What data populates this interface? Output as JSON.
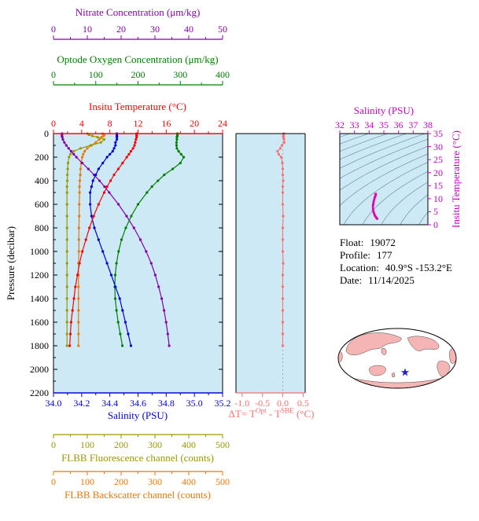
{
  "colors": {
    "nitrate": "#8800AA",
    "oxygen": "#008000",
    "temperature": "#FF0000",
    "salinity": "#0000DD",
    "fluorescence": "#999900",
    "backscatter": "#EE7700",
    "delta_t": "#FF6E6E",
    "ts_curve": "#E800B0",
    "ts_label": "#CC00CC",
    "plot_bg": "#CDE9F6",
    "contour": "#6B93A8",
    "land": "#F5B5B5",
    "star": "#2222CC"
  },
  "axes": {
    "nitrate": {
      "title": "Nitrate Concentration (μm/kg)",
      "ticks": [
        0,
        10,
        20,
        30,
        40,
        50
      ],
      "lim": [
        0,
        50
      ]
    },
    "oxygen": {
      "title": "Optode Oxygen Concentration (μm/kg)",
      "ticks": [
        0,
        100,
        200,
        300,
        400
      ],
      "lim": [
        0,
        400
      ]
    },
    "temperature": {
      "title": "Insitu Temperature (°C)",
      "ticks": [
        0,
        4,
        8,
        12,
        16,
        20,
        24
      ],
      "lim": [
        0,
        24
      ]
    },
    "pressure": {
      "title": "Pressure (decibar)",
      "ticks": [
        0,
        200,
        400,
        600,
        800,
        1000,
        1200,
        1400,
        1600,
        1800,
        2000,
        2200
      ],
      "lim": [
        0,
        2200
      ]
    },
    "salinity": {
      "title": "Salinity (PSU)",
      "ticks": [
        "34.0",
        "34.2",
        "34.4",
        "34.6",
        "34.8",
        "35.0",
        "35.2"
      ],
      "lim": [
        34.0,
        35.2
      ]
    },
    "fluorescence": {
      "title": "FLBB Fluorescence channel (counts)",
      "ticks": [
        0,
        100,
        200,
        300,
        400,
        500
      ],
      "lim": [
        0,
        500
      ]
    },
    "backscatter": {
      "title": "FLBB Backscatter channel (counts)",
      "ticks": [
        0,
        100,
        200,
        300,
        400,
        500
      ],
      "lim": [
        0,
        500
      ]
    },
    "delta_t": {
      "title_parts": {
        "p1": "ΔT= T",
        "sup1": "Opt",
        "p2": " - T",
        "sup2": "SBE",
        "p3": " (°C)"
      },
      "ticks": [
        "-1.0",
        "-0.5",
        "0.0",
        "0.5"
      ],
      "lim": [
        -1.15,
        0.55
      ]
    },
    "ts_salinity": {
      "title": "Salinity (PSU)",
      "ticks": [
        32,
        33,
        34,
        35,
        36,
        37,
        38
      ],
      "lim": [
        32,
        38
      ]
    },
    "ts_temperature": {
      "title": "Insitu Temperature (°C)",
      "ticks": [
        0,
        5,
        10,
        15,
        20,
        25,
        30,
        35
      ],
      "lim": [
        0,
        35
      ]
    }
  },
  "info": {
    "float_label": "Float:",
    "float_value": "19072",
    "profile_label": "Profile:",
    "profile_value": "177",
    "location_label": "Location:",
    "location_value": "40.9°S -153.2°E",
    "date_label": "Date:",
    "date_value": "11/14/2025"
  },
  "chart_data": [
    {
      "id": "profile",
      "type": "line",
      "ylabel": "Pressure (decibar)",
      "ylim": [
        0,
        2200
      ],
      "y_ticks": [
        0,
        200,
        400,
        600,
        800,
        1000,
        1200,
        1400,
        1600,
        1800,
        2000,
        2200
      ],
      "pressure": [
        0,
        10,
        20,
        30,
        50,
        75,
        100,
        125,
        150,
        175,
        200,
        250,
        300,
        350,
        400,
        450,
        500,
        600,
        700,
        800,
        900,
        1000,
        1100,
        1200,
        1300,
        1400,
        1500,
        1600,
        1700,
        1800
      ],
      "series": [
        {
          "name": "nitrate",
          "label": "Nitrate Concentration (μm/kg)",
          "xlim": [
            0,
            50
          ],
          "values": [
            2.5,
            2.5,
            2.5,
            2.6,
            2.8,
            3.2,
            3.8,
            4.5,
            5.2,
            6.0,
            6.8,
            8.5,
            10.3,
            12.0,
            13.6,
            15.1,
            16.5,
            19.2,
            21.6,
            23.8,
            25.7,
            27.4,
            28.9,
            30.1,
            31.1,
            32.0,
            32.7,
            33.3,
            33.8,
            34.2
          ]
        },
        {
          "name": "oxygen",
          "label": "Optode Oxygen Concentration (μm/kg)",
          "xlim": [
            0,
            400
          ],
          "values": [
            293,
            293,
            293,
            292,
            292,
            291,
            291,
            292,
            296,
            302,
            308,
            300,
            282,
            262,
            247,
            233,
            221,
            200,
            184,
            171,
            161,
            154,
            149,
            146,
            145,
            146,
            149,
            153,
            158,
            163
          ]
        },
        {
          "name": "temperature",
          "label": "Insitu Temperature (°C)",
          "xlim": [
            0,
            24
          ],
          "values": [
            11.8,
            11.8,
            11.8,
            11.8,
            11.7,
            11.6,
            11.5,
            11.3,
            11.0,
            10.7,
            10.4,
            9.8,
            9.2,
            8.6,
            8.1,
            7.6,
            7.2,
            6.4,
            5.7,
            5.1,
            4.6,
            4.1,
            3.7,
            3.4,
            3.1,
            2.9,
            2.7,
            2.5,
            2.4,
            2.3
          ]
        },
        {
          "name": "salinity",
          "label": "Salinity (PSU)",
          "xlim": [
            34.0,
            35.2
          ],
          "values": [
            34.45,
            34.45,
            34.45,
            34.45,
            34.45,
            34.44,
            34.44,
            34.43,
            34.42,
            34.4,
            34.38,
            34.35,
            34.32,
            34.3,
            34.28,
            34.27,
            34.26,
            34.26,
            34.27,
            34.29,
            34.32,
            34.35,
            34.38,
            34.41,
            34.44,
            34.47,
            34.49,
            34.51,
            34.53,
            34.55
          ]
        },
        {
          "name": "fluorescence",
          "label": "FLBB Fluorescence channel (counts)",
          "xlim": [
            0,
            500
          ],
          "values": [
            100,
            105,
            115,
            130,
            150,
            140,
            110,
            80,
            60,
            50,
            46,
            43,
            42,
            41,
            41,
            40,
            40,
            40,
            40,
            40,
            40,
            40,
            40,
            40,
            40,
            40,
            40,
            40,
            40,
            40
          ]
        },
        {
          "name": "backscatter",
          "label": "FLBB Backscatter channel (counts)",
          "xlim": [
            0,
            500
          ],
          "values": [
            145,
            150,
            148,
            142,
            135,
            125,
            112,
            100,
            92,
            88,
            85,
            82,
            80,
            79,
            78,
            77,
            77,
            76,
            76,
            75,
            75,
            75,
            74,
            74,
            74,
            74,
            74,
            74,
            74,
            74
          ]
        }
      ]
    },
    {
      "id": "delta_t",
      "type": "line",
      "xlabel": "ΔT= TOpt - TSBE (°C)",
      "xlim": [
        -1.15,
        0.55
      ],
      "x_ticks": [
        -1.0,
        -0.5,
        0.0,
        0.5
      ],
      "pressure_ref": "profile",
      "values": [
        0.02,
        0.02,
        0.01,
        0.02,
        0.03,
        0.04,
        -0.02,
        -0.06,
        -0.13,
        -0.1,
        -0.04,
        -0.01,
        0.0,
        0.0,
        0.01,
        0.0,
        0.0,
        0.0,
        0.01,
        0.0,
        0.0,
        0.0,
        0.01,
        0.0,
        0.0,
        0.0,
        0.0,
        0.0,
        0.0,
        0.0
      ]
    },
    {
      "id": "ts_diagram",
      "type": "line",
      "title": "Salinity (PSU)",
      "ylabel": "Insitu Temperature (°C)",
      "xlim": [
        32,
        38
      ],
      "ylim": [
        0,
        35
      ],
      "x_ticks": [
        32,
        33,
        34,
        35,
        36,
        37,
        38
      ],
      "y_ticks": [
        0,
        5,
        10,
        15,
        20,
        25,
        30,
        35
      ],
      "isopycnal_sigmas": [
        18,
        19,
        20,
        21,
        22,
        23,
        24,
        25,
        26,
        27,
        28,
        29,
        30
      ],
      "source": "salinity-vs-temperature-from-profile"
    }
  ]
}
